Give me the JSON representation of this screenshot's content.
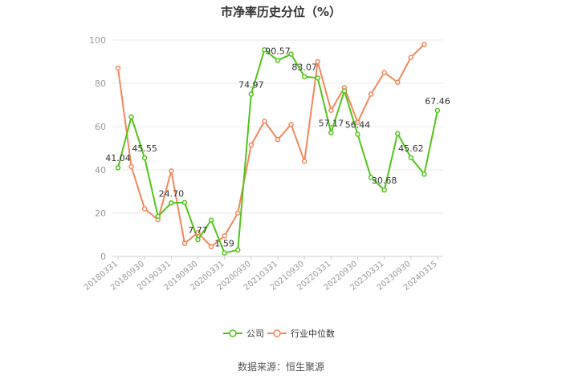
{
  "chart_data": {
    "type": "line",
    "title": "市净率历史分位（%）",
    "ylim": [
      0,
      100
    ],
    "yticks": [
      0,
      20,
      40,
      60,
      80,
      100
    ],
    "grid": true,
    "legend_position": "bottom-center",
    "x": [
      "20180331",
      "20180630",
      "20180930",
      "20181231",
      "20190331",
      "20190630",
      "20190930",
      "20191231",
      "20200331",
      "20200630",
      "20200930",
      "20201231",
      "20210331",
      "20210630",
      "20210930",
      "20211231",
      "20220331",
      "20220630",
      "20220930",
      "20221231",
      "20230331",
      "20230630",
      "20230930",
      "20231231",
      "20240315"
    ],
    "x_tick_labels": [
      "20180331",
      "20180930",
      "20190331",
      "20190930",
      "20200331",
      "20200930",
      "20210331",
      "20210930",
      "20220331",
      "20220930",
      "20230331",
      "20230930",
      "20240315"
    ],
    "x_tick_indices": [
      0,
      2,
      4,
      6,
      8,
      10,
      12,
      14,
      16,
      18,
      20,
      22,
      24
    ],
    "series": [
      {
        "name": "公司",
        "color": "#52c41a",
        "values": [
          41.04,
          64.5,
          45.55,
          18.5,
          24.7,
          24.9,
          7.77,
          16.8,
          1.59,
          3.0,
          74.97,
          95.5,
          90.57,
          93.5,
          83.07,
          82.5,
          57.17,
          76.5,
          56.44,
          36.5,
          30.68,
          56.8,
          45.62,
          38.0,
          67.46
        ]
      },
      {
        "name": "行业中位数",
        "color": "#f4875a",
        "values": [
          87.0,
          41.5,
          22.0,
          17.0,
          39.5,
          6.0,
          11.0,
          4.5,
          9.5,
          20.0,
          51.5,
          62.5,
          54.0,
          61.0,
          44.0,
          90.0,
          67.5,
          78.0,
          62.0,
          75.0,
          85.0,
          80.5,
          92.0,
          98.0,
          null
        ]
      }
    ],
    "data_labels": [
      {
        "series": 0,
        "index": 0,
        "text": "41.04"
      },
      {
        "series": 0,
        "index": 2,
        "text": "45.55"
      },
      {
        "series": 0,
        "index": 4,
        "text": "24.70"
      },
      {
        "series": 0,
        "index": 6,
        "text": "7.77"
      },
      {
        "series": 0,
        "index": 8,
        "text": "1.59"
      },
      {
        "series": 0,
        "index": 10,
        "text": "74.97"
      },
      {
        "series": 0,
        "index": 12,
        "text": "90.57"
      },
      {
        "series": 0,
        "index": 14,
        "text": "83.07"
      },
      {
        "series": 0,
        "index": 16,
        "text": "57.17"
      },
      {
        "series": 0,
        "index": 18,
        "text": "56.44"
      },
      {
        "series": 0,
        "index": 20,
        "text": "30.68"
      },
      {
        "series": 0,
        "index": 22,
        "text": "45.62"
      },
      {
        "series": 0,
        "index": 24,
        "text": "67.46"
      }
    ]
  },
  "source": "数据来源：恒生聚源"
}
